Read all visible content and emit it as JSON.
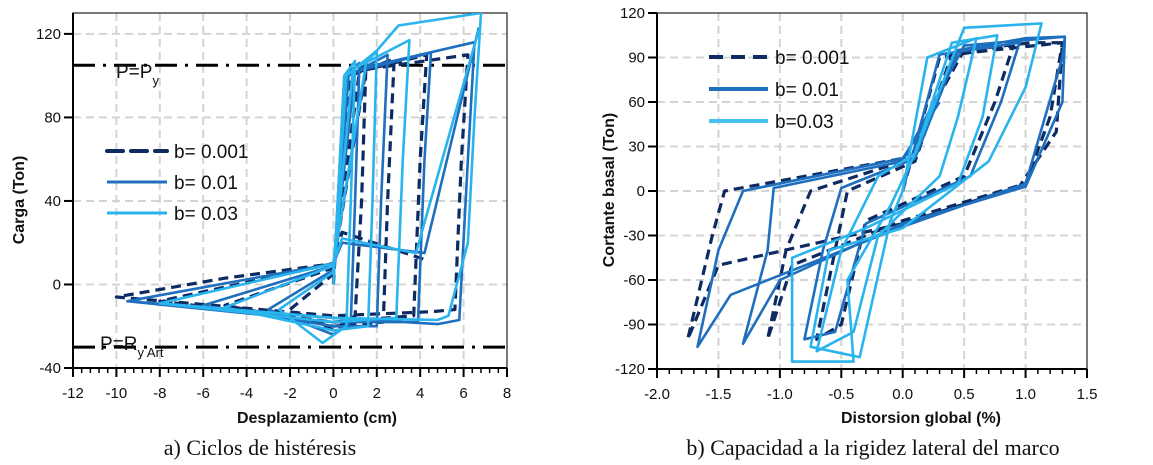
{
  "chart_data": [
    {
      "type": "line",
      "caption": "a) Ciclos de histéresis",
      "xlabel": "Desplazamiento (cm)",
      "ylabel": "Carga (Ton)",
      "xlim": [
        -12,
        8
      ],
      "ylim": [
        -40,
        130
      ],
      "xticks": [
        -12,
        -10,
        -8,
        -6,
        -4,
        -2,
        0,
        2,
        4,
        6,
        8
      ],
      "yticks": [
        -40,
        0,
        40,
        80,
        120
      ],
      "grid": true,
      "legend_position": "left",
      "reference_lines": [
        {
          "y": 105,
          "label": "P=P",
          "label_sub": "y",
          "style": "dash-dot"
        },
        {
          "y": -30,
          "label": "P=R",
          "label_sub": "y Art",
          "style": "dash-dot"
        }
      ],
      "series": [
        {
          "name": "b= 0.001",
          "color": "#0d2a63",
          "style": "dashed",
          "points": [
            [
              0,
              0
            ],
            [
              0.6,
              100
            ],
            [
              1.5,
              106
            ],
            [
              1.3,
              40
            ],
            [
              1.0,
              -15
            ],
            [
              0,
              -22
            ],
            [
              -2,
              -12
            ],
            [
              0,
              5
            ],
            [
              0.8,
              100
            ],
            [
              2.8,
              108
            ],
            [
              2.5,
              40
            ],
            [
              2.3,
              -18
            ],
            [
              0,
              -20
            ],
            [
              -5,
              -10
            ],
            [
              0,
              8
            ],
            [
              1.2,
              102
            ],
            [
              4.3,
              110
            ],
            [
              4.0,
              60
            ],
            [
              3.7,
              -15
            ],
            [
              0,
              -18
            ],
            [
              -8,
              -8
            ],
            [
              0,
              10
            ],
            [
              1.5,
              103
            ],
            [
              6.2,
              110
            ],
            [
              5.9,
              60
            ],
            [
              5.6,
              -12
            ],
            [
              4.6,
              -13
            ],
            [
              0,
              -15
            ],
            [
              -10,
              -6
            ],
            [
              -5,
              3
            ],
            [
              0,
              10
            ],
            [
              0.4,
              25
            ],
            [
              4.2,
              12
            ]
          ]
        },
        {
          "name": "b= 0.01",
          "color": "#1f6fbf",
          "style": "solid",
          "points": [
            [
              0,
              0
            ],
            [
              0.5,
              100
            ],
            [
              1.2,
              106
            ],
            [
              1.0,
              40
            ],
            [
              0.8,
              -18
            ],
            [
              0,
              -24
            ],
            [
              -3,
              -12
            ],
            [
              0,
              7
            ],
            [
              0.7,
              100
            ],
            [
              2.5,
              110
            ],
            [
              2.2,
              40
            ],
            [
              2.0,
              -20
            ],
            [
              0,
              -20
            ],
            [
              -6,
              -10
            ],
            [
              0,
              9
            ],
            [
              1.0,
              102
            ],
            [
              4.5,
              111
            ],
            [
              4.2,
              60
            ],
            [
              3.9,
              -18
            ],
            [
              0,
              -18
            ],
            [
              -9.5,
              -8
            ],
            [
              0,
              10
            ],
            [
              1.5,
              104
            ],
            [
              6.5,
              116
            ],
            [
              6.2,
              60
            ],
            [
              5.8,
              -17
            ],
            [
              4.8,
              -19
            ],
            [
              0,
              -16
            ],
            [
              -9.5,
              -8
            ],
            [
              0,
              10
            ],
            [
              0.4,
              20
            ],
            [
              4.2,
              15
            ],
            [
              6.7,
              123
            ]
          ]
        },
        {
          "name": "b= 0.03",
          "color": "#2ab4ee",
          "style": "solid",
          "points": [
            [
              0,
              0
            ],
            [
              0.5,
              100
            ],
            [
              1.0,
              107
            ],
            [
              0.8,
              40
            ],
            [
              0.6,
              -20
            ],
            [
              -0.5,
              -28
            ],
            [
              -2.5,
              -12
            ],
            [
              0,
              6
            ],
            [
              0.6,
              100
            ],
            [
              2.0,
              112
            ],
            [
              1.8,
              40
            ],
            [
              1.6,
              -20
            ],
            [
              0,
              -22
            ],
            [
              -5,
              -11
            ],
            [
              0,
              9
            ],
            [
              0.9,
              103
            ],
            [
              3.5,
              117
            ],
            [
              3.2,
              60
            ],
            [
              2.9,
              -16
            ],
            [
              0,
              -18
            ],
            [
              -8,
              -9
            ],
            [
              0,
              10
            ],
            [
              1.5,
              106
            ],
            [
              3.0,
              124
            ],
            [
              6.8,
              130
            ],
            [
              6.5,
              80
            ],
            [
              6.2,
              20
            ],
            [
              5.3,
              -15
            ],
            [
              4.8,
              -17
            ],
            [
              0,
              -16
            ],
            [
              -8,
              -9
            ],
            [
              0,
              10
            ],
            [
              0.4,
              22
            ],
            [
              3.8,
              15
            ],
            [
              6.7,
              122
            ]
          ]
        }
      ]
    },
    {
      "type": "line",
      "caption": "b) Capacidad a la rigidez lateral del marco",
      "xlabel": "Distorsion global (%)",
      "ylabel": "Cortante basal (Ton)",
      "xlim": [
        -2.0,
        1.5
      ],
      "ylim": [
        -120,
        120
      ],
      "xticks": [
        "-2.0",
        "-1.5",
        "-1.0",
        "-0.5",
        "0.0",
        "0.5",
        "1.0",
        "1.5"
      ],
      "yticks": [
        -120,
        -90,
        -60,
        -30,
        0,
        30,
        60,
        90,
        120
      ],
      "grid": true,
      "legend_position": "top-left",
      "series": [
        {
          "name": "b= 0.001",
          "color": "#0d2a63",
          "style": "dashed",
          "points": [
            [
              0,
              0
            ],
            [
              0.3,
              90
            ],
            [
              0.9,
              98
            ],
            [
              0.75,
              60
            ],
            [
              0.5,
              10
            ],
            [
              -0.3,
              -20
            ],
            [
              -0.5,
              -90
            ],
            [
              -0.7,
              -100
            ],
            [
              -0.55,
              -40
            ],
            [
              -0.45,
              0
            ],
            [
              0.1,
              20
            ],
            [
              0.4,
              92
            ],
            [
              1.3,
              100
            ],
            [
              1.2,
              50
            ],
            [
              1.0,
              5
            ],
            [
              0,
              -20
            ],
            [
              -0.9,
              -50
            ],
            [
              -1.1,
              -100
            ],
            [
              -0.95,
              -40
            ],
            [
              -0.75,
              0
            ],
            [
              0,
              20
            ],
            [
              0.5,
              95
            ],
            [
              1.05,
              100
            ],
            [
              1.3,
              100
            ],
            [
              1.25,
              40
            ],
            [
              0.95,
              3
            ],
            [
              0,
              -22
            ],
            [
              -1.5,
              -50
            ],
            [
              -1.75,
              -100
            ],
            [
              -1.55,
              -30
            ],
            [
              -1.45,
              0
            ],
            [
              0,
              22
            ]
          ]
        },
        {
          "name": "b= 0.01",
          "color": "#1f6fbf",
          "style": "solid",
          "points": [
            [
              0,
              0
            ],
            [
              0.3,
              92
            ],
            [
              0.95,
              100
            ],
            [
              0.8,
              60
            ],
            [
              0.55,
              10
            ],
            [
              -0.3,
              -22
            ],
            [
              -0.55,
              -95
            ],
            [
              -0.8,
              -100
            ],
            [
              -0.65,
              -40
            ],
            [
              -0.5,
              2
            ],
            [
              0.1,
              22
            ],
            [
              0.45,
              95
            ],
            [
              1.0,
              103
            ],
            [
              1.32,
              104
            ],
            [
              1.3,
              60
            ],
            [
              1.0,
              3
            ],
            [
              0,
              -22
            ],
            [
              -1.0,
              -60
            ],
            [
              -1.3,
              -103
            ],
            [
              -1.1,
              -40
            ],
            [
              -1.05,
              2
            ],
            [
              0,
              20
            ],
            [
              0.5,
              98
            ],
            [
              1.32,
              104
            ],
            [
              1.3,
              90
            ],
            [
              1.0,
              5
            ],
            [
              0,
              -24
            ],
            [
              -1.4,
              -70
            ],
            [
              -1.67,
              -105
            ],
            [
              -1.5,
              -40
            ],
            [
              -1.3,
              0
            ],
            [
              0,
              22
            ],
            [
              0.3,
              60
            ]
          ]
        },
        {
          "name": "b=0.03",
          "color": "#2ab4ee",
          "style": "solid",
          "points": [
            [
              0,
              0
            ],
            [
              0.2,
              90
            ],
            [
              0.6,
              103
            ],
            [
              0.45,
              50
            ],
            [
              0.3,
              10
            ],
            [
              -0.2,
              -30
            ],
            [
              -0.4,
              -95
            ],
            [
              -0.7,
              -108
            ],
            [
              -0.5,
              -40
            ],
            [
              -0.2,
              10
            ],
            [
              0.1,
              25
            ],
            [
              0.4,
              100
            ],
            [
              0.77,
              105
            ],
            [
              0.65,
              50
            ],
            [
              0.45,
              5
            ],
            [
              -0.3,
              -25
            ],
            [
              -0.9,
              -45
            ],
            [
              -0.9,
              -115
            ],
            [
              -0.4,
              -115
            ],
            [
              -0.45,
              -60
            ],
            [
              -0.1,
              -10
            ],
            [
              0.1,
              25
            ],
            [
              0.5,
              110
            ],
            [
              1.13,
              113
            ],
            [
              1.0,
              70
            ],
            [
              0.7,
              20
            ],
            [
              0,
              -25
            ],
            [
              -0.6,
              -40
            ],
            [
              -0.75,
              -105
            ],
            [
              -0.35,
              -112
            ],
            [
              -0.1,
              -20
            ],
            [
              0,
              0
            ]
          ]
        }
      ]
    }
  ]
}
